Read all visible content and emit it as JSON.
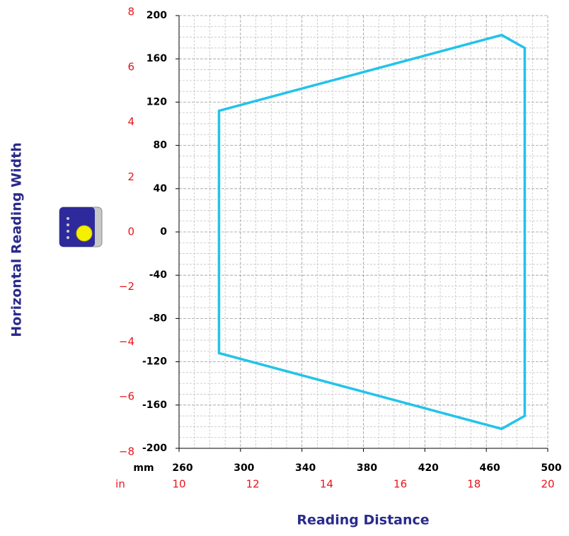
{
  "chart_data": {
    "type": "polygon",
    "x_label": "Reading Distance",
    "y_label": "Horizontal Reading Width",
    "x_unit": "mm",
    "x2_unit": "in",
    "xlim": [
      260,
      500
    ],
    "xticks": [
      260,
      300,
      340,
      380,
      420,
      460,
      500
    ],
    "ylim": [
      -200,
      200
    ],
    "yticks": [
      -200,
      -160,
      -120,
      -80,
      -40,
      0,
      40,
      80,
      120,
      160,
      200
    ],
    "x2lim": [
      10,
      20
    ],
    "x2ticks": [
      10,
      12,
      14,
      16,
      18,
      20
    ],
    "y2lim": [
      -7.874,
      7.874
    ],
    "y2ticks": [
      {
        "value": -8,
        "label": "−8"
      },
      {
        "value": -6,
        "label": "−6"
      },
      {
        "value": -4,
        "label": "−4"
      },
      {
        "value": -2,
        "label": "−2"
      },
      0,
      2,
      4,
      6,
      8
    ],
    "grid": true,
    "series": [
      {
        "color": "#22c3ea",
        "x": [
          286,
          470,
          485,
          485,
          470,
          286
        ],
        "values": [
          112,
          182,
          170,
          -170,
          -182,
          -112
        ]
      }
    ]
  }
}
